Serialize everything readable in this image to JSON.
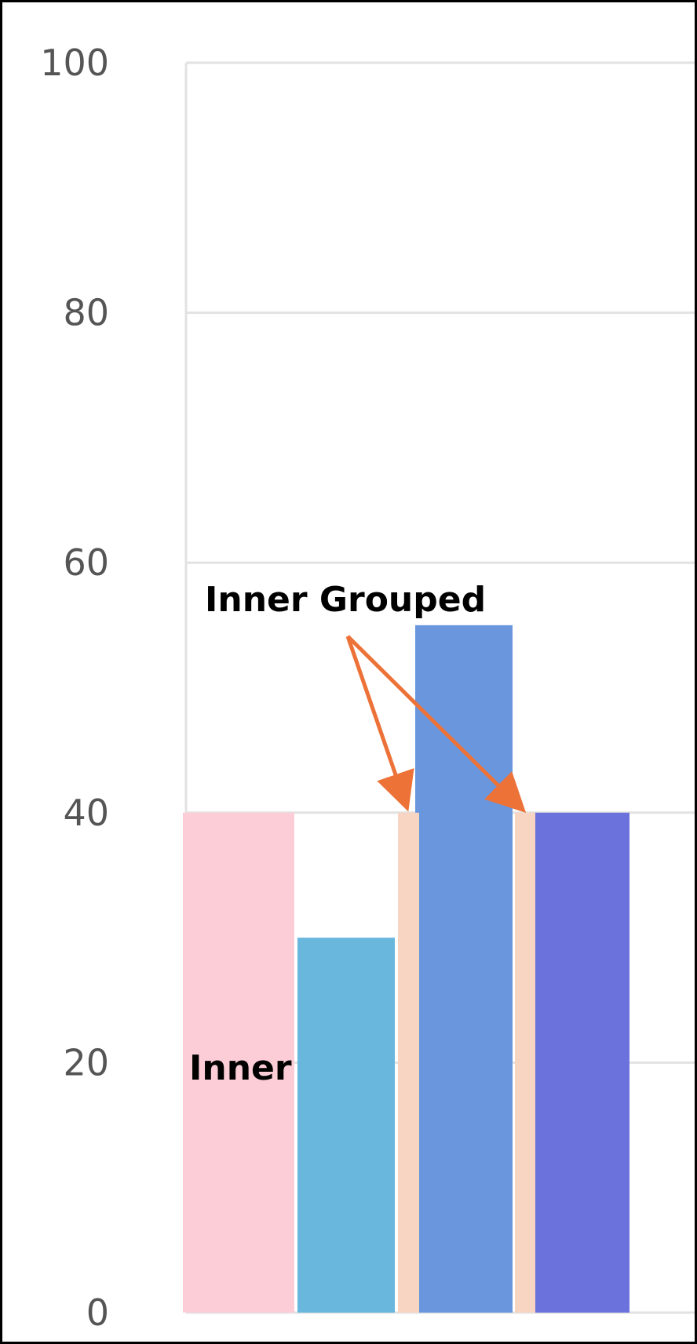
{
  "chart_data": {
    "type": "bar",
    "title": "",
    "xlabel": "",
    "ylabel": "",
    "ylim": [
      0,
      100
    ],
    "yticks": [
      0,
      20,
      40,
      60,
      80,
      100
    ],
    "grid": true,
    "bars": [
      {
        "name": "bar-inner",
        "value": 40,
        "color": "#fccdd7"
      },
      {
        "name": "bar-2",
        "value": 30,
        "color": "#69b7dc"
      },
      {
        "name": "bar-3",
        "value": 55,
        "color": "#6a96dd"
      },
      {
        "name": "bar-4",
        "value": 40,
        "color": "#6b72db"
      }
    ],
    "inner_grouped_markers": [
      {
        "name": "inner-grouped-marker-1",
        "value": 40,
        "color": "#f8d5c2"
      },
      {
        "name": "inner-grouped-marker-2",
        "value": 40,
        "color": "#f8d5c2"
      }
    ],
    "annotations": {
      "inner": "Inner",
      "inner_grouped": "Inner Grouped",
      "arrow_color": "#ec7238"
    }
  }
}
